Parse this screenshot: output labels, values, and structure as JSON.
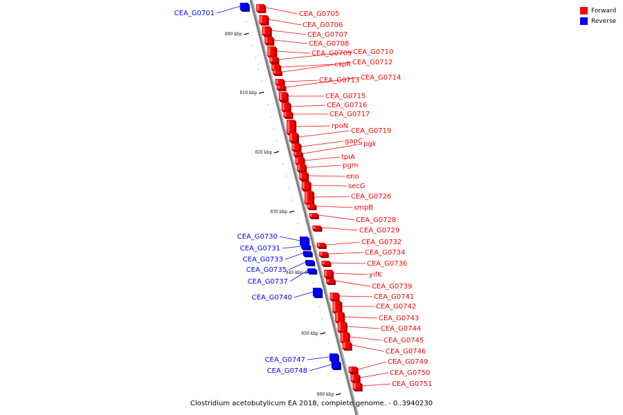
{
  "caption": "Clostridium acetobutylicum EA 2018, complete genome. - 0..3940230",
  "legend": [
    {
      "label": "Forward",
      "color": "#ff0000"
    },
    {
      "label": "Reverse",
      "color": "#0000ff"
    }
  ],
  "colors": {
    "forward": "#ff0000",
    "reverse": "#0000ff",
    "backbone": "#7f7f7f"
  },
  "ticks": [
    "800 kbp",
    "810 kbp",
    "820 kbp",
    "830 kbp",
    "840 kbp",
    "850 kbp",
    "860 kbp"
  ],
  "genes": [
    {
      "name": "CEA_G0701",
      "strand": "reverse"
    },
    {
      "name": "CEA_G0705",
      "strand": "forward"
    },
    {
      "name": "CEA_G0706",
      "strand": "forward"
    },
    {
      "name": "CEA_G0707",
      "strand": "forward"
    },
    {
      "name": "CEA_G0708",
      "strand": "forward"
    },
    {
      "name": "CEA_G0709",
      "strand": "forward"
    },
    {
      "name": "CEA_G0710",
      "strand": "forward"
    },
    {
      "name": "cspR",
      "strand": "forward"
    },
    {
      "name": "CEA_G0712",
      "strand": "forward"
    },
    {
      "name": "CEA_G0713",
      "strand": "forward"
    },
    {
      "name": "CEA_G0714",
      "strand": "forward"
    },
    {
      "name": "CEA_G0715",
      "strand": "forward"
    },
    {
      "name": "CEA_G0716",
      "strand": "forward"
    },
    {
      "name": "CEA_G0717",
      "strand": "forward"
    },
    {
      "name": "rpoN",
      "strand": "forward"
    },
    {
      "name": "CEA_G0719",
      "strand": "forward"
    },
    {
      "name": "gapC",
      "strand": "forward"
    },
    {
      "name": "pgk",
      "strand": "forward"
    },
    {
      "name": "tpiA",
      "strand": "forward"
    },
    {
      "name": "pgm",
      "strand": "forward"
    },
    {
      "name": "eno",
      "strand": "forward"
    },
    {
      "name": "secG",
      "strand": "forward"
    },
    {
      "name": "CEA_G0726",
      "strand": "forward"
    },
    {
      "name": "smpB",
      "strand": "forward"
    },
    {
      "name": "CEA_G0728",
      "strand": "forward"
    },
    {
      "name": "CEA_G0729",
      "strand": "forward"
    },
    {
      "name": "CEA_G0730",
      "strand": "reverse"
    },
    {
      "name": "CEA_G0731",
      "strand": "reverse"
    },
    {
      "name": "CEA_G0732",
      "strand": "forward"
    },
    {
      "name": "CEA_G0733",
      "strand": "reverse"
    },
    {
      "name": "CEA_G0734",
      "strand": "forward"
    },
    {
      "name": "CEA_G0735",
      "strand": "reverse"
    },
    {
      "name": "CEA_G0736",
      "strand": "forward"
    },
    {
      "name": "CEA_G0737",
      "strand": "reverse"
    },
    {
      "name": "yifK",
      "strand": "forward"
    },
    {
      "name": "CEA_G0739",
      "strand": "forward"
    },
    {
      "name": "CEA_G0740",
      "strand": "reverse"
    },
    {
      "name": "CEA_G0741",
      "strand": "forward"
    },
    {
      "name": "CEA_G0742",
      "strand": "forward"
    },
    {
      "name": "CEA_G0743",
      "strand": "forward"
    },
    {
      "name": "CEA_G0744",
      "strand": "forward"
    },
    {
      "name": "CEA_G0745",
      "strand": "forward"
    },
    {
      "name": "CEA_G0746",
      "strand": "forward"
    },
    {
      "name": "CEA_G0747",
      "strand": "reverse"
    },
    {
      "name": "CEA_G0748",
      "strand": "reverse"
    },
    {
      "name": "CEA_G0749",
      "strand": "forward"
    },
    {
      "name": "CEA_G0750",
      "strand": "forward"
    },
    {
      "name": "CEA_G0751",
      "strand": "forward"
    }
  ]
}
